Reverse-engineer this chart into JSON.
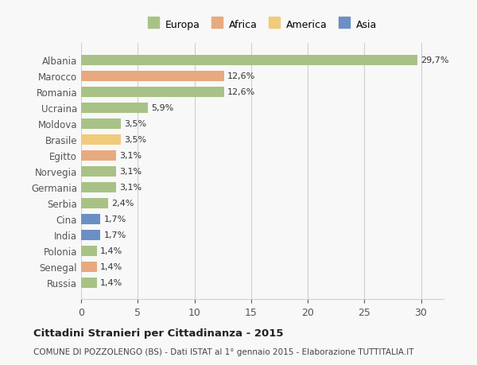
{
  "countries": [
    "Albania",
    "Marocco",
    "Romania",
    "Ucraina",
    "Moldova",
    "Brasile",
    "Egitto",
    "Norvegia",
    "Germania",
    "Serbia",
    "Cina",
    "India",
    "Polonia",
    "Senegal",
    "Russia"
  ],
  "values": [
    29.7,
    12.6,
    12.6,
    5.9,
    3.5,
    3.5,
    3.1,
    3.1,
    3.1,
    2.4,
    1.7,
    1.7,
    1.4,
    1.4,
    1.4
  ],
  "labels": [
    "29,7%",
    "12,6%",
    "12,6%",
    "5,9%",
    "3,5%",
    "3,5%",
    "3,1%",
    "3,1%",
    "3,1%",
    "2,4%",
    "1,7%",
    "1,7%",
    "1,4%",
    "1,4%",
    "1,4%"
  ],
  "continents": [
    "Europa",
    "Africa",
    "Europa",
    "Europa",
    "Europa",
    "America",
    "Africa",
    "Europa",
    "Europa",
    "Europa",
    "Asia",
    "Asia",
    "Europa",
    "Africa",
    "Europa"
  ],
  "continent_colors": {
    "Europa": "#a8c285",
    "Africa": "#e8a97e",
    "America": "#f0cb7a",
    "Asia": "#6b8fc4"
  },
  "legend_order": [
    "Europa",
    "Africa",
    "America",
    "Asia"
  ],
  "title": "Cittadini Stranieri per Cittadinanza - 2015",
  "subtitle": "COMUNE DI POZZOLENGO (BS) - Dati ISTAT al 1° gennaio 2015 - Elaborazione TUTTITALIA.IT",
  "xlim": [
    0,
    32
  ],
  "xticks": [
    0,
    5,
    10,
    15,
    20,
    25,
    30
  ],
  "background_color": "#f8f8f8",
  "grid_color": "#d0d0d0"
}
